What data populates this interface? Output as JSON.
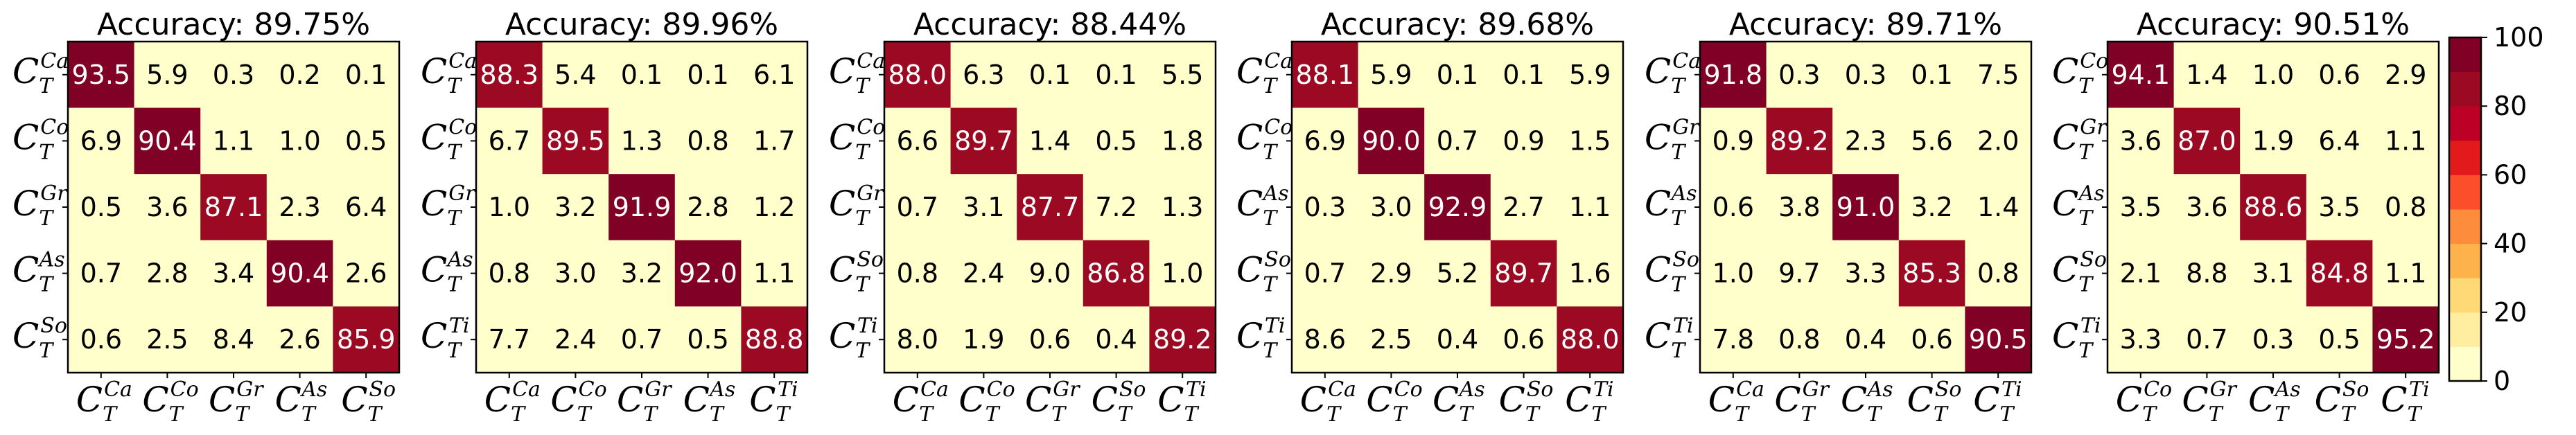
{
  "chart_data": [
    {
      "type": "heatmap",
      "title": "Accuracy: 89.75%",
      "row_labels": [
        [
          "C",
          "T",
          "Ca"
        ],
        [
          "C",
          "T",
          "Co"
        ],
        [
          "C",
          "T",
          "Gr"
        ],
        [
          "C",
          "T",
          "As"
        ],
        [
          "C",
          "T",
          "So"
        ]
      ],
      "col_labels": [
        [
          "C",
          "T",
          "Ca"
        ],
        [
          "C",
          "T",
          "Co"
        ],
        [
          "C",
          "T",
          "Gr"
        ],
        [
          "C",
          "T",
          "As"
        ],
        [
          "C",
          "T",
          "So"
        ]
      ],
      "values": [
        [
          93.5,
          5.9,
          0.3,
          0.2,
          0.1
        ],
        [
          6.9,
          90.4,
          1.1,
          1.0,
          0.5
        ],
        [
          0.5,
          3.6,
          87.1,
          2.3,
          6.4
        ],
        [
          0.7,
          2.8,
          3.4,
          90.4,
          2.6
        ],
        [
          0.6,
          2.5,
          8.4,
          2.6,
          85.9
        ]
      ]
    },
    {
      "type": "heatmap",
      "title": "Accuracy: 89.96%",
      "row_labels": [
        [
          "C",
          "T",
          "Ca"
        ],
        [
          "C",
          "T",
          "Co"
        ],
        [
          "C",
          "T",
          "Gr"
        ],
        [
          "C",
          "T",
          "As"
        ],
        [
          "C",
          "T",
          "Ti"
        ]
      ],
      "col_labels": [
        [
          "C",
          "T",
          "Ca"
        ],
        [
          "C",
          "T",
          "Co"
        ],
        [
          "C",
          "T",
          "Gr"
        ],
        [
          "C",
          "T",
          "As"
        ],
        [
          "C",
          "T",
          "Ti"
        ]
      ],
      "values": [
        [
          88.3,
          5.4,
          0.1,
          0.1,
          6.1
        ],
        [
          6.7,
          89.5,
          1.3,
          0.8,
          1.7
        ],
        [
          1.0,
          3.2,
          91.9,
          2.8,
          1.2
        ],
        [
          0.8,
          3.0,
          3.2,
          92.0,
          1.1
        ],
        [
          7.7,
          2.4,
          0.7,
          0.5,
          88.8
        ]
      ]
    },
    {
      "type": "heatmap",
      "title": "Accuracy: 88.44%",
      "row_labels": [
        [
          "C",
          "T",
          "Ca"
        ],
        [
          "C",
          "T",
          "Co"
        ],
        [
          "C",
          "T",
          "Gr"
        ],
        [
          "C",
          "T",
          "So"
        ],
        [
          "C",
          "T",
          "Ti"
        ]
      ],
      "col_labels": [
        [
          "C",
          "T",
          "Ca"
        ],
        [
          "C",
          "T",
          "Co"
        ],
        [
          "C",
          "T",
          "Gr"
        ],
        [
          "C",
          "T",
          "So"
        ],
        [
          "C",
          "T",
          "Ti"
        ]
      ],
      "values": [
        [
          88.0,
          6.3,
          0.1,
          0.1,
          5.5
        ],
        [
          6.6,
          89.7,
          1.4,
          0.5,
          1.8
        ],
        [
          0.7,
          3.1,
          87.7,
          7.2,
          1.3
        ],
        [
          0.8,
          2.4,
          9.0,
          86.8,
          1.0
        ],
        [
          8.0,
          1.9,
          0.6,
          0.4,
          89.2
        ]
      ]
    },
    {
      "type": "heatmap",
      "title": "Accuracy: 89.68%",
      "row_labels": [
        [
          "C",
          "T",
          "Ca"
        ],
        [
          "C",
          "T",
          "Co"
        ],
        [
          "C",
          "T",
          "As"
        ],
        [
          "C",
          "T",
          "So"
        ],
        [
          "C",
          "T",
          "Ti"
        ]
      ],
      "col_labels": [
        [
          "C",
          "T",
          "Ca"
        ],
        [
          "C",
          "T",
          "Co"
        ],
        [
          "C",
          "T",
          "As"
        ],
        [
          "C",
          "T",
          "So"
        ],
        [
          "C",
          "T",
          "Ti"
        ]
      ],
      "values": [
        [
          88.1,
          5.9,
          0.1,
          0.1,
          5.9
        ],
        [
          6.9,
          90.0,
          0.7,
          0.9,
          1.5
        ],
        [
          0.3,
          3.0,
          92.9,
          2.7,
          1.1
        ],
        [
          0.7,
          2.9,
          5.2,
          89.7,
          1.6
        ],
        [
          8.6,
          2.5,
          0.4,
          0.6,
          88.0
        ]
      ]
    },
    {
      "type": "heatmap",
      "title": "Accuracy: 89.71%",
      "row_labels": [
        [
          "C",
          "T",
          "Ca"
        ],
        [
          "C",
          "T",
          "Gr"
        ],
        [
          "C",
          "T",
          "As"
        ],
        [
          "C",
          "T",
          "So"
        ],
        [
          "C",
          "T",
          "Ti"
        ]
      ],
      "col_labels": [
        [
          "C",
          "T",
          "Ca"
        ],
        [
          "C",
          "T",
          "Gr"
        ],
        [
          "C",
          "T",
          "As"
        ],
        [
          "C",
          "T",
          "So"
        ],
        [
          "C",
          "T",
          "Ti"
        ]
      ],
      "values": [
        [
          91.8,
          0.3,
          0.3,
          0.1,
          7.5
        ],
        [
          0.9,
          89.2,
          2.3,
          5.6,
          2.0
        ],
        [
          0.6,
          3.8,
          91.0,
          3.2,
          1.4
        ],
        [
          1.0,
          9.7,
          3.3,
          85.3,
          0.8
        ],
        [
          7.8,
          0.8,
          0.4,
          0.6,
          90.5
        ]
      ]
    },
    {
      "type": "heatmap",
      "title": "Accuracy: 90.51%",
      "row_labels": [
        [
          "C",
          "T",
          "Co"
        ],
        [
          "C",
          "T",
          "Gr"
        ],
        [
          "C",
          "T",
          "As"
        ],
        [
          "C",
          "T",
          "So"
        ],
        [
          "C",
          "T",
          "Ti"
        ]
      ],
      "col_labels": [
        [
          "C",
          "T",
          "Co"
        ],
        [
          "C",
          "T",
          "Gr"
        ],
        [
          "C",
          "T",
          "As"
        ],
        [
          "C",
          "T",
          "So"
        ],
        [
          "C",
          "T",
          "Ti"
        ]
      ],
      "values": [
        [
          94.1,
          1.4,
          1.0,
          0.6,
          2.9
        ],
        [
          3.6,
          87.0,
          1.9,
          6.4,
          1.1
        ],
        [
          3.5,
          3.6,
          88.6,
          3.5,
          0.8
        ],
        [
          2.1,
          8.8,
          3.1,
          84.8,
          1.1
        ],
        [
          3.3,
          0.7,
          0.3,
          0.5,
          95.2
        ]
      ]
    }
  ],
  "colorbar": {
    "ticks": [
      "0",
      "20",
      "40",
      "60",
      "80",
      "100"
    ],
    "range": [
      0,
      100
    ],
    "colors": [
      "#ffffcc",
      "#ffeda0",
      "#fed976",
      "#feb24c",
      "#fd8d3c",
      "#fc4e2a",
      "#e31a1c",
      "#bd0026",
      "#9b0a22",
      "#800026"
    ]
  }
}
